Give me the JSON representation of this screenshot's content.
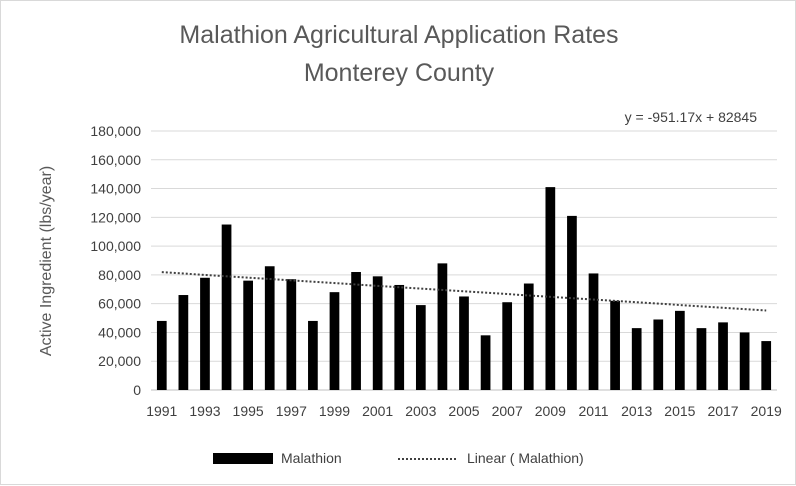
{
  "chart_data": {
    "type": "bar",
    "title": "Malathion Agricultural Application Rates",
    "subtitle": "Monterey County",
    "ylabel": "Active Ingredient (lbs/year)",
    "xlabel": "",
    "ylim": [
      0,
      180000
    ],
    "yticks": [
      0,
      20000,
      40000,
      60000,
      80000,
      100000,
      120000,
      140000,
      160000,
      180000
    ],
    "ytick_labels": [
      "0",
      "20,000",
      "40,000",
      "60,000",
      "80,000",
      "100,000",
      "120,000",
      "140,000",
      "160,000",
      "180,000"
    ],
    "grid": true,
    "categories": [
      "1991",
      "1992",
      "1993",
      "1994",
      "1995",
      "1996",
      "1997",
      "1998",
      "1999",
      "2000",
      "2001",
      "2002",
      "2003",
      "2004",
      "2005",
      "2006",
      "2007",
      "2008",
      "2009",
      "2010",
      "2011",
      "2012",
      "2013",
      "2014",
      "2015",
      "2016",
      "2017",
      "2018",
      "2019"
    ],
    "xtick_labels": [
      "1991",
      "1993",
      "1995",
      "1997",
      "1999",
      "2001",
      "2003",
      "2005",
      "2007",
      "2009",
      "2011",
      "2013",
      "2015",
      "2017",
      "2019"
    ],
    "series": [
      {
        "name": "Malathion",
        "color": "#000000",
        "values": [
          48000,
          66000,
          78000,
          115000,
          76000,
          86000,
          77000,
          48000,
          68000,
          82000,
          79000,
          73000,
          59000,
          88000,
          65000,
          38000,
          61000,
          74000,
          141000,
          121000,
          81000,
          62000,
          43000,
          49000,
          55000,
          43000,
          47000,
          40000,
          34000
        ]
      }
    ],
    "trendline": {
      "name": "Linear ( Malathion)",
      "style": "dotted",
      "color": "#404040",
      "slope": -951.17,
      "intercept": 82845,
      "equation": "y = -951.17x + 82845"
    },
    "legend": {
      "placement": "bottom",
      "entries": [
        "Malathion",
        "Linear ( Malathion)"
      ]
    }
  }
}
